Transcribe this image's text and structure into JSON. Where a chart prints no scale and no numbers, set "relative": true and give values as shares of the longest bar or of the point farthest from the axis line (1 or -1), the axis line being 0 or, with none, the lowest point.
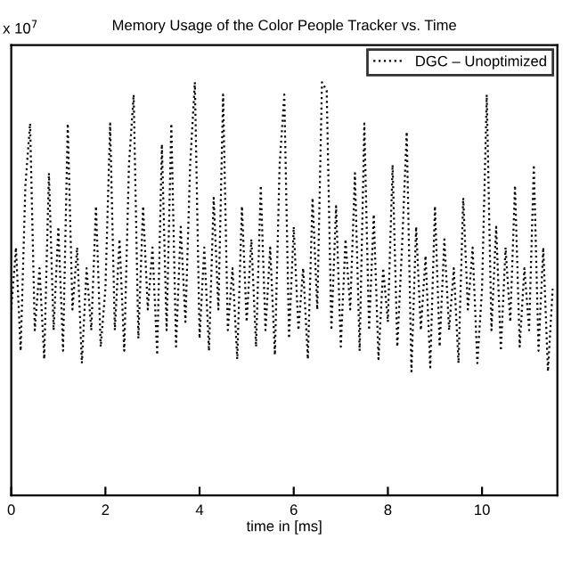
{
  "chart_data": {
    "type": "line",
    "title": "Memory Usage of the Color People Tracker vs. Time",
    "xlabel": "time in [ms]",
    "relative": true,
    "xlim": [
      0,
      11.6
    ],
    "xticks": [
      0,
      2,
      4,
      6,
      8,
      10
    ],
    "grid": false,
    "legend": "top right",
    "line_style": "dotted",
    "marker": "none",
    "annotations": [
      "x 10$^{7}$"
    ],
    "x": [
      0,
      0.1,
      0.2,
      0.3,
      0.4,
      0.5,
      0.6,
      0.7,
      0.8,
      0.9,
      1.0,
      1.1,
      1.2,
      1.3,
      1.4,
      1.5,
      1.6,
      1.7,
      1.8,
      1.9,
      2.0,
      2.1,
      2.2,
      2.3,
      2.4,
      2.5,
      2.6,
      2.7,
      2.8,
      2.9,
      3.0,
      3.1,
      3.2,
      3.3,
      3.4,
      3.5,
      3.6,
      3.7,
      3.8,
      3.9,
      4.0,
      4.1,
      4.2,
      4.3,
      4.4,
      4.5,
      4.6,
      4.7,
      4.8,
      4.9,
      5.0,
      5.1,
      5.2,
      5.3,
      5.4,
      5.5,
      5.6,
      5.7,
      5.8,
      5.9,
      6.0,
      6.1,
      6.2,
      6.3,
      6.4,
      6.5,
      6.6,
      6.7,
      6.8,
      6.9,
      7.0,
      7.1,
      7.2,
      7.3,
      7.4,
      7.5,
      7.6,
      7.7,
      7.8,
      7.9,
      8.0,
      8.1,
      8.2,
      8.3,
      8.4,
      8.5,
      8.6,
      8.7,
      8.8,
      8.9,
      9.0,
      9.1,
      9.2,
      9.3,
      9.4,
      9.5,
      9.6,
      9.7,
      9.8,
      9.9,
      10.0,
      10.1,
      10.2,
      10.3,
      10.4,
      10.5,
      10.6,
      10.7,
      10.8,
      10.9,
      11.0,
      11.1,
      11.2,
      11.3,
      11.4,
      11.5
    ],
    "series": [
      {
        "name": "DGC – Unoptimized",
        "color": "#000000",
        "values": [
          0.45,
          0.6,
          0.35,
          0.75,
          0.9,
          0.4,
          0.55,
          0.33,
          0.78,
          0.4,
          0.65,
          0.35,
          0.9,
          0.45,
          0.6,
          0.32,
          0.55,
          0.4,
          0.7,
          0.36,
          0.5,
          0.9,
          0.4,
          0.62,
          0.35,
          0.8,
          0.97,
          0.38,
          0.7,
          0.45,
          0.6,
          0.34,
          0.85,
          0.4,
          0.9,
          0.36,
          0.65,
          0.42,
          0.8,
          1.0,
          0.38,
          0.6,
          0.35,
          0.72,
          0.45,
          0.97,
          0.4,
          0.55,
          0.33,
          0.7,
          0.42,
          0.62,
          0.36,
          0.75,
          0.4,
          0.6,
          0.34,
          0.8,
          0.97,
          0.38,
          0.65,
          0.4,
          0.55,
          0.33,
          0.72,
          0.45,
          1.0,
          0.98,
          0.4,
          0.7,
          0.36,
          0.62,
          0.45,
          0.78,
          0.35,
          0.9,
          0.4,
          0.68,
          0.33,
          0.55,
          0.42,
          0.8,
          0.36,
          0.6,
          0.88,
          0.3,
          0.65,
          0.4,
          0.58,
          0.31,
          0.7,
          0.36,
          0.62,
          0.4,
          0.55,
          0.32,
          0.72,
          0.45,
          0.6,
          0.32,
          0.5,
          0.97,
          0.4,
          0.65,
          0.35,
          0.6,
          0.42,
          0.75,
          0.36,
          0.55,
          0.4,
          0.8,
          0.35,
          0.6,
          0.3,
          0.5
        ]
      }
    ]
  }
}
